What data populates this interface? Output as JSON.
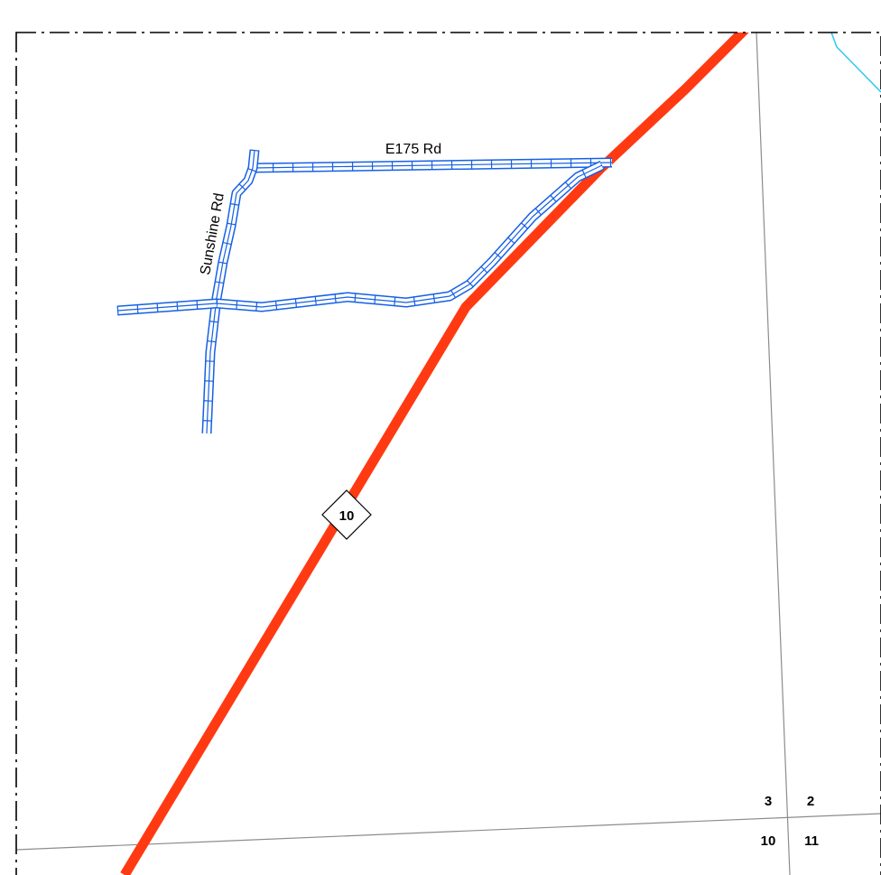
{
  "map": {
    "colors": {
      "highway": "#ff3a12",
      "local_road": "#1560e6",
      "stream": "#2ec8f0",
      "section_line": "#8c8c8c",
      "border": "#000000"
    },
    "roads": {
      "e175": {
        "label": "E175 Rd"
      },
      "sunshine": {
        "label": "Sunshine Rd"
      }
    },
    "highway": {
      "shield_number": "10"
    },
    "sections": {
      "nw": "3",
      "ne": "2",
      "sw": "10",
      "se": "11"
    }
  }
}
